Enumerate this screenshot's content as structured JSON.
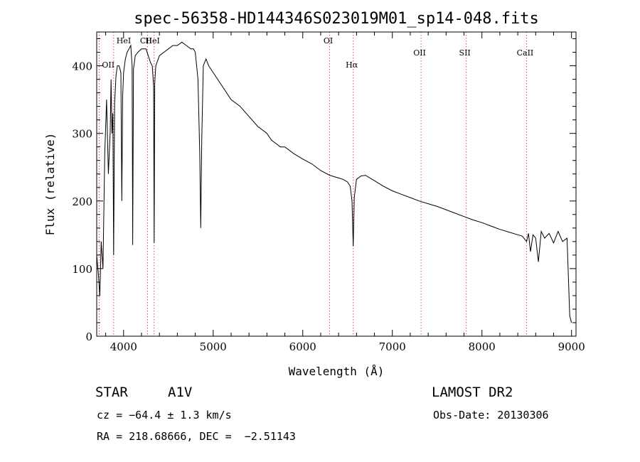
{
  "chart_data": {
    "type": "line",
    "title": "spec-56358-HD144346S023019M01_sp14-048.fits",
    "xlabel": "Wavelength (Å)",
    "ylabel": "Flux (relative)",
    "xlim": [
      3700,
      9050
    ],
    "ylim": [
      0,
      450
    ],
    "xticks": [
      4000,
      5000,
      6000,
      7000,
      8000,
      9000
    ],
    "yticks": [
      0,
      100,
      200,
      300,
      400
    ],
    "grid": false,
    "series": [
      {
        "x": [
          3700,
          3720,
          3735,
          3750,
          3770,
          3790,
          3810,
          3830,
          3850,
          3860,
          3870,
          3880,
          3889,
          3900,
          3915,
          3930,
          3950,
          3970,
          3980,
          3990,
          4000,
          4020,
          4040,
          4060,
          4080,
          4095,
          4102,
          4110,
          4130,
          4160,
          4200,
          4250,
          4300,
          4320,
          4335,
          4341,
          4348,
          4360,
          4400,
          4450,
          4500,
          4550,
          4600,
          4650,
          4700,
          4750,
          4780,
          4800,
          4830,
          4850,
          4861,
          4872,
          4890,
          4920,
          4950,
          5000,
          5050,
          5100,
          5200,
          5300,
          5400,
          5500,
          5550,
          5600,
          5650,
          5700,
          5750,
          5800,
          5900,
          6000,
          6100,
          6200,
          6300,
          6400,
          6450,
          6500,
          6530,
          6550,
          6563,
          6575,
          6600,
          6650,
          6700,
          6800,
          6900,
          7000,
          7100,
          7200,
          7300,
          7400,
          7500,
          7600,
          7700,
          7800,
          7900,
          8000,
          8100,
          8200,
          8300,
          8400,
          8450,
          8498,
          8520,
          8542,
          8570,
          8600,
          8630,
          8662,
          8700,
          8750,
          8800,
          8850,
          8900,
          8950,
          8980,
          9000
        ],
        "y": [
          120,
          90,
          60,
          140,
          100,
          270,
          350,
          240,
          300,
          380,
          300,
          330,
          120,
          345,
          385,
          400,
          400,
          390,
          200,
          355,
          390,
          410,
          420,
          425,
          430,
          400,
          135,
          395,
          415,
          420,
          425,
          425,
          405,
          400,
          370,
          138,
          375,
          400,
          415,
          420,
          425,
          430,
          430,
          435,
          430,
          425,
          425,
          420,
          380,
          270,
          160,
          290,
          400,
          410,
          400,
          390,
          380,
          370,
          350,
          340,
          325,
          310,
          305,
          300,
          290,
          285,
          280,
          280,
          270,
          262,
          255,
          245,
          238,
          234,
          232,
          228,
          222,
          200,
          133,
          205,
          232,
          237,
          238,
          230,
          222,
          215,
          210,
          205,
          200,
          196,
          192,
          187,
          182,
          177,
          172,
          168,
          163,
          158,
          154,
          150,
          148,
          140,
          152,
          125,
          150,
          145,
          110,
          155,
          145,
          152,
          138,
          155,
          140,
          145,
          30,
          20
        ]
      }
    ],
    "lines_marked": [
      {
        "label": "OII",
        "x": 3727
      },
      {
        "label": "HeI",
        "x": 3889
      },
      {
        "label": "CII",
        "x": 4267
      },
      {
        "label": "HeI",
        "x": 4340
      },
      {
        "label": "OI",
        "x": 6300
      },
      {
        "label": "Hα",
        "x": 6563
      },
      {
        "label": "OII",
        "x": 7320
      },
      {
        "label": "SII",
        "x": 7825
      },
      {
        "label": "CaII",
        "x": 8498
      }
    ]
  },
  "info": {
    "object": "STAR",
    "subclass": "A1V",
    "redshift": "cz = −64.4 ± 1.3 km/s",
    "coords": "RA = 218.68666, DEC =  −2.51143",
    "survey": "LAMOST DR2",
    "obs_date": "Obs-Date: 20130306"
  }
}
